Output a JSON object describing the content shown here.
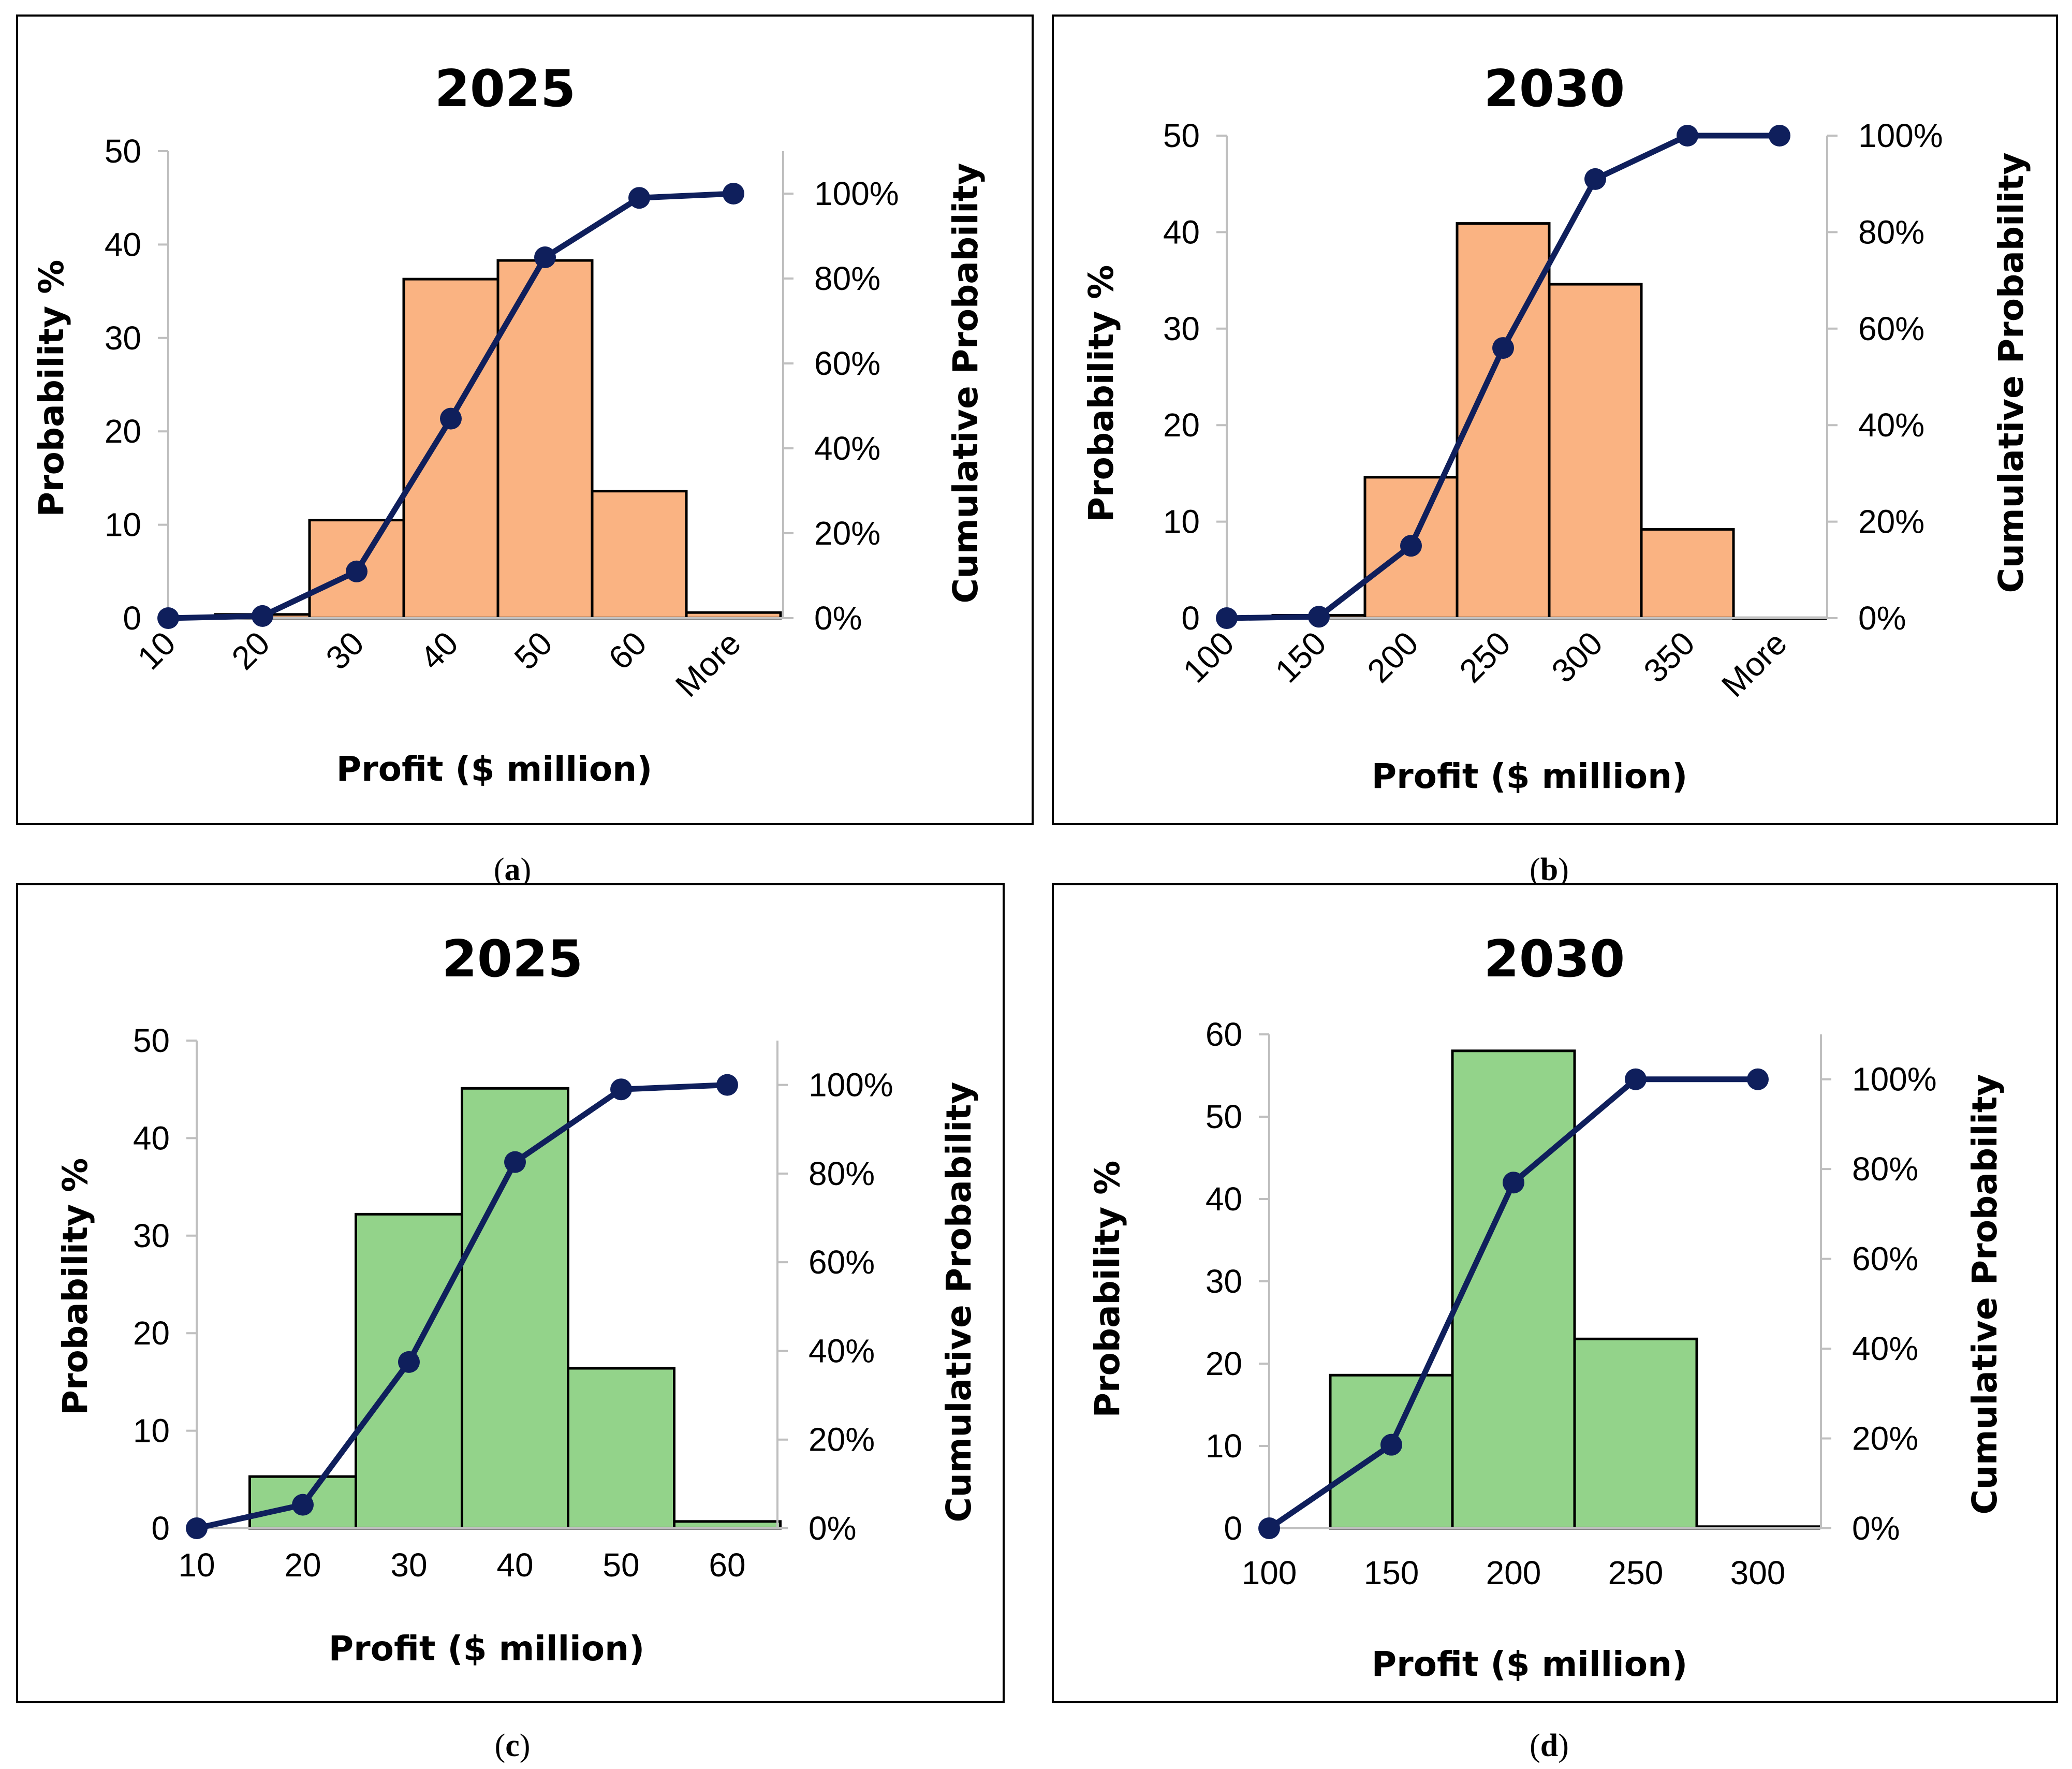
{
  "colors": {
    "bars_top": "#fab382",
    "bars_bottom": "#93d38a",
    "cumulative": "#0f1f5c"
  },
  "panels": [
    {
      "label_open": "(",
      "label_letter": "a",
      "label_close": ")"
    },
    {
      "label_open": "(",
      "label_letter": "b",
      "label_close": ")"
    },
    {
      "label_open": "(",
      "label_letter": "c",
      "label_close": ")"
    },
    {
      "label_open": "(",
      "label_letter": "d",
      "label_close": ")"
    }
  ],
  "chart_data": [
    {
      "type": "bar",
      "title": "2025",
      "xlabel": "Profit ($ million)",
      "ylabel": "Probability %",
      "y2label": "Cumulative Probability",
      "categories": [
        "10",
        "20",
        "30",
        "40",
        "50",
        "60",
        "More"
      ],
      "ylim": [
        0,
        50
      ],
      "y_ticks": [
        "0",
        "10",
        "20",
        "30",
        "40",
        "50"
      ],
      "y2lim": [
        0,
        1.1
      ],
      "y2_ticks": [
        "0%",
        "20%",
        "40%",
        "60%",
        "80%",
        "100%"
      ],
      "x_tick_rotation": -45,
      "grid": false,
      "series": [
        {
          "kind": "histogram",
          "values": [
            0,
            0.4,
            10.5,
            36.3,
            38.3,
            13.6,
            0.6
          ]
        },
        {
          "kind": "cumulative-line",
          "axis": "right",
          "values": [
            0.0,
            0.005,
            0.11,
            0.47,
            0.85,
            0.99,
            1.0
          ]
        }
      ]
    },
    {
      "type": "bar",
      "title": "2030",
      "xlabel": "Profit ($ million)",
      "ylabel": "Probability %",
      "y2label": "Cumulative Probability",
      "categories": [
        "100",
        "150",
        "200",
        "250",
        "300",
        "350",
        "More"
      ],
      "ylim": [
        0,
        50
      ],
      "y_ticks": [
        "0",
        "10",
        "20",
        "30",
        "40",
        "50"
      ],
      "y2lim": [
        0,
        1.0
      ],
      "y2_ticks": [
        "0%",
        "20%",
        "40%",
        "60%",
        "80%",
        "100%"
      ],
      "x_tick_rotation": -45,
      "grid": false,
      "series": [
        {
          "kind": "histogram",
          "values": [
            0,
            0.3,
            14.6,
            40.9,
            34.6,
            9.2,
            0
          ]
        },
        {
          "kind": "cumulative-line",
          "axis": "right",
          "values": [
            0.0,
            0.003,
            0.15,
            0.56,
            0.91,
            1.0,
            1.0
          ]
        }
      ]
    },
    {
      "type": "bar",
      "title": "2025",
      "xlabel": "Profit ($ million)",
      "ylabel": "Probability %",
      "y2label": "Cumulative Probability",
      "categories": [
        "10",
        "20",
        "30",
        "40",
        "50",
        "60"
      ],
      "ylim": [
        0,
        50
      ],
      "y_ticks": [
        "0",
        "10",
        "20",
        "30",
        "40",
        "50"
      ],
      "y2lim": [
        0,
        1.1
      ],
      "y2_ticks": [
        "0%",
        "20%",
        "40%",
        "60%",
        "80%",
        "100%"
      ],
      "x_tick_rotation": 0,
      "grid": false,
      "series": [
        {
          "kind": "histogram",
          "values": [
            0,
            5.3,
            32.2,
            45.1,
            16.4,
            0.7
          ]
        },
        {
          "kind": "cumulative-line",
          "axis": "right",
          "values": [
            0.0,
            0.053,
            0.375,
            0.826,
            0.99,
            1.0
          ]
        }
      ]
    },
    {
      "type": "bar",
      "title": "2030",
      "xlabel": "Profit ($ million)",
      "ylabel": "Probability %",
      "y2label": "Cumulative Probability",
      "categories": [
        "100",
        "150",
        "200",
        "250",
        "300"
      ],
      "ylim": [
        0,
        60
      ],
      "y_ticks": [
        "0",
        "10",
        "20",
        "30",
        "40",
        "50",
        "60"
      ],
      "y2lim": [
        0,
        1.1
      ],
      "y2_ticks": [
        "0%",
        "20%",
        "40%",
        "60%",
        "80%",
        "100%"
      ],
      "x_tick_rotation": 0,
      "grid": false,
      "series": [
        {
          "kind": "histogram",
          "values": [
            0,
            18.6,
            58.0,
            23.0,
            0.2
          ]
        },
        {
          "kind": "cumulative-line",
          "axis": "right",
          "values": [
            0.0,
            0.186,
            0.77,
            1.0,
            1.0
          ]
        }
      ]
    }
  ]
}
